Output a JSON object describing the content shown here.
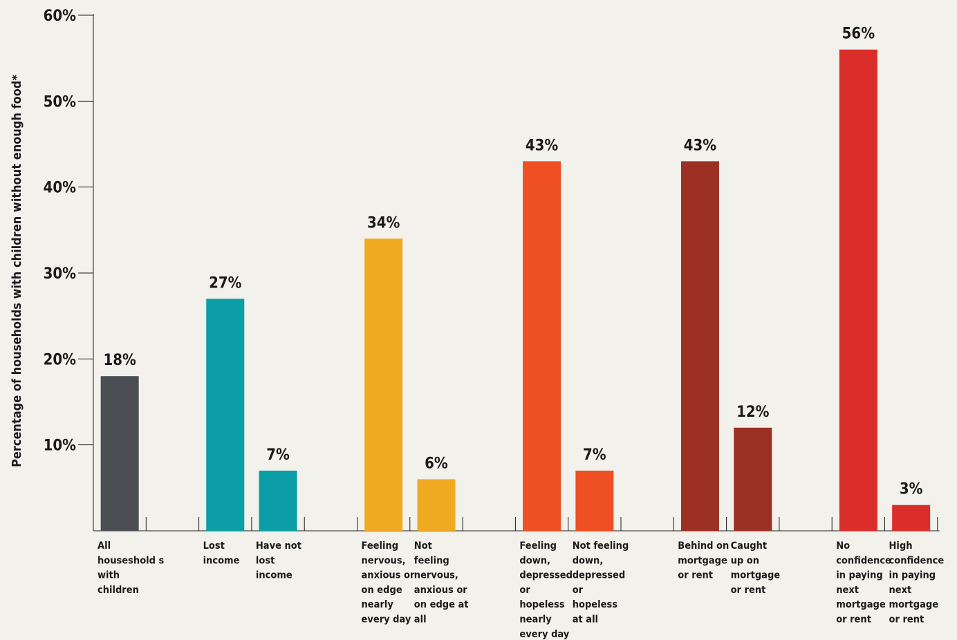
{
  "chart_data": {
    "type": "bar",
    "ylabel": "Percentage of households with children without enough food*",
    "ylim": [
      0,
      60
    ],
    "yticks": [
      10,
      20,
      30,
      40,
      50,
      60
    ],
    "ytick_labels": [
      "10%",
      "20%",
      "30%",
      "40%",
      "50%",
      "60%"
    ],
    "grid": false,
    "bars": [
      {
        "label": [
          "All",
          "houseshold s",
          "with",
          "children"
        ],
        "value": 18,
        "value_label": "18%",
        "color": "#4b4f53"
      },
      {
        "label": [
          "Lost",
          "income"
        ],
        "value": 27,
        "value_label": "27%",
        "color": "#0b9ea6"
      },
      {
        "label": [
          "Have not",
          "lost",
          "income"
        ],
        "value": 7,
        "value_label": "7%",
        "color": "#0b9ea6"
      },
      {
        "label": [
          "Feeling",
          "nervous,",
          "anxious or",
          "on edge",
          "nearly",
          "every day"
        ],
        "value": 34,
        "value_label": "34%",
        "color": "#f0aa21"
      },
      {
        "label": [
          "Not",
          "feeling",
          "nervous,",
          "anxious or",
          "on edge at",
          "all"
        ],
        "value": 6,
        "value_label": "6%",
        "color": "#f0aa21"
      },
      {
        "label": [
          "Feeling",
          "down,",
          "depressed",
          "or",
          "hopeless",
          "nearly",
          "every day"
        ],
        "value": 43,
        "value_label": "43%",
        "color": "#ee5024"
      },
      {
        "label": [
          "Not feeling",
          "down,",
          "depressed",
          "or",
          "hopeless",
          "at all"
        ],
        "value": 7,
        "value_label": "7%",
        "color": "#ee5024"
      },
      {
        "label": [
          "Behind on",
          "mortgage",
          "or rent"
        ],
        "value": 43,
        "value_label": "43%",
        "color": "#9b3023"
      },
      {
        "label": [
          "Caught",
          "up on",
          "mortgage",
          "or rent"
        ],
        "value": 12,
        "value_label": "12%",
        "color": "#9b3023"
      },
      {
        "label": [
          "No",
          "confidence",
          "in paying",
          "next",
          "mortgage",
          "or rent"
        ],
        "value": 56,
        "value_label": "56%",
        "color": "#db2e29"
      },
      {
        "label": [
          "High",
          "confidence",
          "in paying",
          "next",
          "mortgage",
          "or rent"
        ],
        "value": 3,
        "value_label": "3%",
        "color": "#db2e29"
      }
    ]
  }
}
